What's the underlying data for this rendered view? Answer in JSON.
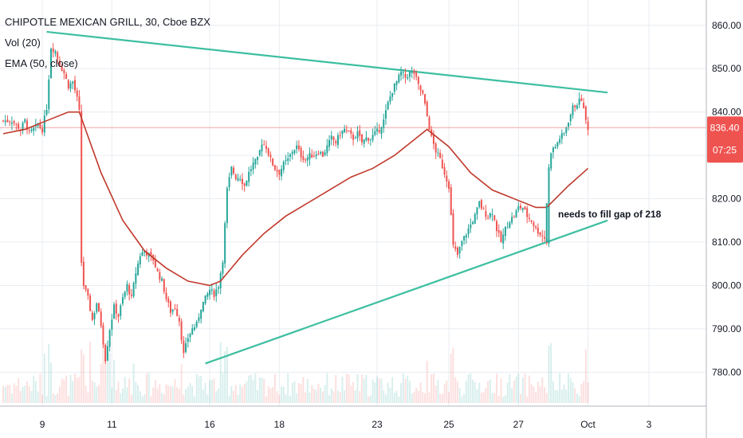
{
  "header": {
    "symbol_line": "CHIPOTLE MEXICAN GRILL, 30, Cboe BZX",
    "vol_line": "Vol (20)",
    "ema_line": "EMA (50, close)"
  },
  "price_tag": {
    "price": "836.40",
    "countdown": "07:25"
  },
  "annotation": {
    "text": "needs to fill gap of 218"
  },
  "colors": {
    "up": "#26a69a",
    "down": "#ef5350",
    "ema": "#c0392b",
    "trendline": "#3dbfa0",
    "price_line": "#f4a6a6",
    "grid": "#e9ecf1",
    "tag_bg": "#ef5350"
  },
  "chart_data": {
    "type": "candlestick",
    "title": "CHIPOTLE MEXICAN GRILL, 30, Cboe BZX",
    "x_ticks": [
      "9",
      "11",
      "16",
      "18",
      "23",
      "25",
      "27",
      "Oct",
      "3"
    ],
    "y_ticks": [
      "860.00",
      "850.00",
      "840.00",
      "830.00",
      "820.00",
      "810.00",
      "800.00",
      "790.00",
      "780.00"
    ],
    "ylim": [
      774,
      864
    ],
    "last_price": 836.4,
    "close_path": [
      [
        0,
        838
      ],
      [
        4,
        838
      ],
      [
        8,
        836
      ],
      [
        10,
        838
      ],
      [
        12,
        835
      ],
      [
        14,
        836
      ],
      [
        16,
        837
      ],
      [
        18,
        836
      ],
      [
        20,
        841
      ],
      [
        22,
        855
      ],
      [
        24,
        854
      ],
      [
        26,
        851
      ],
      [
        28,
        849
      ],
      [
        30,
        846
      ],
      [
        32,
        847
      ],
      [
        34,
        843
      ],
      [
        35,
        840
      ],
      [
        35.5,
        808
      ],
      [
        37,
        800
      ],
      [
        39,
        797
      ],
      [
        41,
        792
      ],
      [
        43,
        796
      ],
      [
        45,
        791
      ],
      [
        47,
        783
      ],
      [
        49,
        790
      ],
      [
        51,
        795
      ],
      [
        53,
        793
      ],
      [
        55,
        797
      ],
      [
        57,
        800
      ],
      [
        59,
        797
      ],
      [
        61,
        803
      ],
      [
        63,
        807
      ],
      [
        65,
        808
      ],
      [
        67,
        807
      ],
      [
        69,
        806
      ],
      [
        71,
        803
      ],
      [
        73,
        801
      ],
      [
        75,
        797
      ],
      [
        77,
        794
      ],
      [
        79,
        795
      ],
      [
        81,
        792
      ],
      [
        83,
        784
      ],
      [
        85,
        788
      ],
      [
        87,
        790
      ],
      [
        89,
        791
      ],
      [
        91,
        795
      ],
      [
        93,
        797
      ],
      [
        95,
        799
      ],
      [
        97,
        798
      ],
      [
        99,
        800
      ],
      [
        101,
        806
      ],
      [
        103,
        822
      ],
      [
        105,
        827
      ],
      [
        107,
        825
      ],
      [
        109,
        825
      ],
      [
        111,
        823
      ],
      [
        113,
        826
      ],
      [
        115,
        828
      ],
      [
        117,
        829
      ],
      [
        119,
        833
      ],
      [
        121,
        832
      ],
      [
        123,
        829
      ],
      [
        125,
        827
      ],
      [
        127,
        826
      ],
      [
        129,
        828
      ],
      [
        131,
        829
      ],
      [
        133,
        831
      ],
      [
        135,
        832
      ],
      [
        137,
        830
      ],
      [
        139,
        829
      ],
      [
        141,
        830
      ],
      [
        143,
        830
      ],
      [
        145,
        831
      ],
      [
        147,
        830
      ],
      [
        149,
        832
      ],
      [
        151,
        834
      ],
      [
        153,
        833
      ],
      [
        155,
        835
      ],
      [
        157,
        836
      ],
      [
        159,
        835
      ],
      [
        161,
        834
      ],
      [
        163,
        835
      ],
      [
        165,
        833
      ],
      [
        167,
        834
      ],
      [
        169,
        834
      ],
      [
        171,
        835
      ],
      [
        173,
        836
      ],
      [
        175,
        838
      ],
      [
        177,
        842
      ],
      [
        179,
        845
      ],
      [
        181,
        847
      ],
      [
        183,
        849
      ],
      [
        185,
        848
      ],
      [
        187,
        849
      ],
      [
        189,
        849
      ],
      [
        191,
        846
      ],
      [
        193,
        844
      ],
      [
        195,
        839
      ],
      [
        197,
        834
      ],
      [
        199,
        831
      ],
      [
        201,
        829
      ],
      [
        203,
        826
      ],
      [
        205,
        823
      ],
      [
        207,
        809
      ],
      [
        209,
        807
      ],
      [
        211,
        810
      ],
      [
        213,
        812
      ],
      [
        215,
        814
      ],
      [
        217,
        816
      ],
      [
        219,
        819
      ],
      [
        221,
        817
      ],
      [
        223,
        816
      ],
      [
        225,
        817
      ],
      [
        227,
        813
      ],
      [
        229,
        810
      ],
      [
        231,
        813
      ],
      [
        233,
        815
      ],
      [
        235,
        816
      ],
      [
        237,
        818
      ],
      [
        239,
        818
      ],
      [
        241,
        816
      ],
      [
        243,
        815
      ],
      [
        245,
        813
      ],
      [
        247,
        812
      ],
      [
        249,
        811
      ],
      [
        250,
        810
      ],
      [
        250.5,
        825
      ],
      [
        252,
        831
      ],
      [
        254,
        832
      ],
      [
        256,
        834
      ],
      [
        258,
        835
      ],
      [
        260,
        838
      ],
      [
        262,
        841
      ],
      [
        264,
        842
      ],
      [
        266,
        843
      ],
      [
        268,
        838
      ],
      [
        269,
        836.4
      ]
    ],
    "ema_path": [
      [
        0,
        835
      ],
      [
        10,
        836
      ],
      [
        20,
        838
      ],
      [
        30,
        840
      ],
      [
        35,
        840
      ],
      [
        45,
        826
      ],
      [
        55,
        815
      ],
      [
        65,
        808
      ],
      [
        75,
        804
      ],
      [
        85,
        801
      ],
      [
        95,
        800
      ],
      [
        100,
        801
      ],
      [
        110,
        807
      ],
      [
        120,
        812
      ],
      [
        130,
        816
      ],
      [
        140,
        819
      ],
      [
        150,
        822
      ],
      [
        160,
        825
      ],
      [
        170,
        827
      ],
      [
        180,
        830
      ],
      [
        190,
        834
      ],
      [
        195,
        836
      ],
      [
        205,
        832
      ],
      [
        215,
        826
      ],
      [
        225,
        822
      ],
      [
        235,
        820
      ],
      [
        245,
        818
      ],
      [
        250,
        818
      ],
      [
        260,
        823
      ],
      [
        269,
        827
      ]
    ],
    "trendlines": [
      {
        "from": [
          20,
          858.5
        ],
        "to": [
          278,
          844.5
        ]
      },
      {
        "from": [
          93,
          782
        ],
        "to": [
          278,
          815
        ]
      }
    ],
    "gap_marker": {
      "bar": 250,
      "from": 810,
      "to": 819
    },
    "volume": {
      "ylim": [
        0,
        1
      ]
    }
  }
}
